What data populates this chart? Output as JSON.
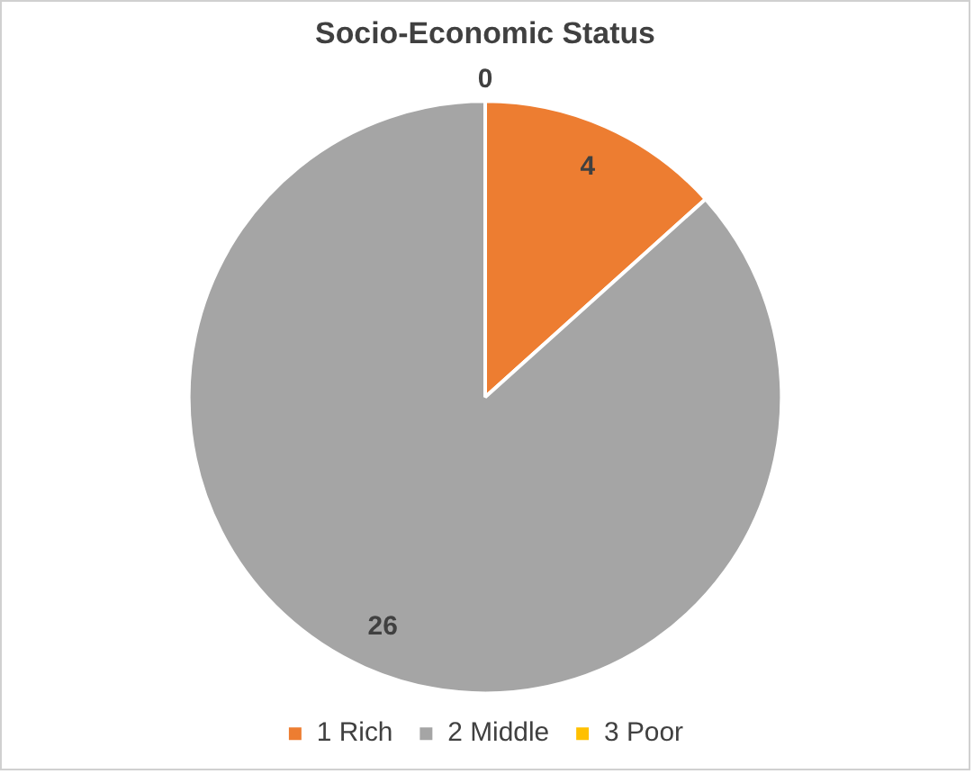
{
  "chart_data": {
    "type": "pie",
    "title": "Socio-Economic Status",
    "categories": [
      "1 Rich",
      "2 Middle",
      "3 Poor"
    ],
    "values": [
      4,
      26,
      0
    ],
    "colors": [
      "#ed7d31",
      "#a5a5a5",
      "#ffc000"
    ],
    "value_labels": [
      "4",
      "26",
      "0"
    ],
    "legend": "bottom"
  }
}
